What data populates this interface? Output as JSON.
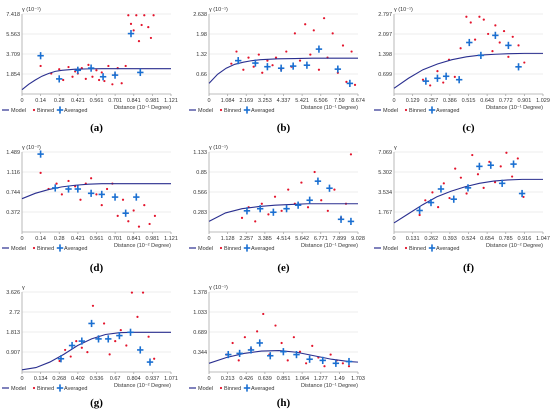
{
  "colors": {
    "model": "#2a2f8f",
    "binned": "#e3142c",
    "averaged": "#1a6fd1",
    "axis": "#a9a9a9"
  },
  "legend": {
    "model": "Model",
    "binned": "Binned",
    "averaged": "Averaged"
  },
  "chart_data": [
    {
      "type": "scatter",
      "panel_label": "(a)",
      "ylabel": "γ (10⁻¹)",
      "xlabel": "Distance (10⁻¹ Degree)",
      "xticks": [
        "0",
        "0.14",
        "0.28",
        "0.421",
        "0.561",
        "0.701",
        "0.841",
        "0.981",
        "1.121"
      ],
      "yticks": [
        "1.854",
        "3.709",
        "5.563",
        "7.418"
      ],
      "xlim": [
        0,
        1.121
      ],
      "ylim": [
        0,
        7.418
      ],
      "model": {
        "x": [
          0,
          0.05,
          0.1,
          0.15,
          0.2,
          0.25,
          0.3,
          0.4,
          0.5,
          0.6,
          0.7,
          0.8,
          0.9,
          1.0,
          1.121
        ],
        "y": [
          0.4,
          0.9,
          1.3,
          1.65,
          1.9,
          2.1,
          2.2,
          2.3,
          2.33,
          2.35,
          2.35,
          2.35,
          2.35,
          2.35,
          2.35
        ]
      },
      "binned": {
        "x": [
          0.14,
          0.22,
          0.28,
          0.31,
          0.35,
          0.38,
          0.4,
          0.42,
          0.45,
          0.48,
          0.5,
          0.53,
          0.56,
          0.58,
          0.6,
          0.62,
          0.65,
          0.68,
          0.7,
          0.72,
          0.75,
          0.78,
          0.8,
          0.82,
          0.84,
          0.86,
          0.88,
          0.9,
          0.92,
          0.95,
          0.97,
          0.99
        ],
        "y": [
          2.6,
          1.9,
          2.3,
          1.3,
          2.5,
          1.6,
          2.1,
          1.9,
          2.4,
          1.4,
          2.7,
          1.6,
          2.2,
          1.3,
          2.0,
          1.2,
          2.6,
          0.9,
          1.8,
          2.4,
          1.0,
          2.6,
          7.3,
          6.5,
          5.9,
          7.3,
          4.9,
          6.4,
          7.3,
          6.2,
          5.2,
          7.3
        ]
      },
      "averaged": {
        "x": [
          0.14,
          0.28,
          0.42,
          0.52,
          0.61,
          0.7,
          0.82,
          0.89
        ],
        "y": [
          3.55,
          1.4,
          2.2,
          2.4,
          1.6,
          1.75,
          5.6,
          2.0
        ]
      }
    },
    {
      "type": "scatter",
      "panel_label": "(b)",
      "ylabel": "γ (10⁻¹)",
      "xlabel": "Distance (10⁻¹ Degree)",
      "xticks": [
        "0",
        "1.084",
        "2.169",
        "3.253",
        "4.337",
        "5.421",
        "6.506",
        "7.59",
        "8.674"
      ],
      "yticks": [
        "0.66",
        "1.32",
        "1.98",
        "2.638"
      ],
      "xlim": [
        0,
        8.674
      ],
      "ylim": [
        0,
        2.638
      ],
      "model": {
        "x": [
          0,
          0.5,
          1.0,
          1.5,
          2.0,
          2.5,
          3.0,
          4.0,
          5.0,
          6.0,
          7.0,
          8.0,
          8.674
        ],
        "y": [
          0.35,
          0.65,
          0.85,
          0.98,
          1.05,
          1.1,
          1.13,
          1.16,
          1.17,
          1.18,
          1.18,
          1.18,
          1.18
        ]
      },
      "binned": {
        "x": [
          1.3,
          1.6,
          2.0,
          2.3,
          2.6,
          2.9,
          3.1,
          3.4,
          3.7,
          3.9,
          4.2,
          4.5,
          4.8,
          5.0,
          5.3,
          5.6,
          5.9,
          6.1,
          6.4,
          6.7,
          6.9,
          7.2,
          7.5,
          7.8,
          8.0,
          8.3,
          8.5
        ],
        "y": [
          1.0,
          1.4,
          0.8,
          1.2,
          0.9,
          1.3,
          0.7,
          1.1,
          0.95,
          1.2,
          0.8,
          1.4,
          0.9,
          2.0,
          1.1,
          2.3,
          1.3,
          2.1,
          0.8,
          2.5,
          1.2,
          2.0,
          0.7,
          1.6,
          0.4,
          1.4,
          0.3
        ]
      },
      "averaged": {
        "x": [
          1.7,
          2.7,
          3.4,
          4.2,
          4.9,
          5.7,
          6.4,
          7.5,
          8.2
        ],
        "y": [
          1.1,
          1.02,
          0.9,
          0.85,
          0.92,
          0.95,
          1.48,
          0.82,
          0.35
        ]
      }
    },
    {
      "type": "scatter",
      "panel_label": "(c)",
      "ylabel": "γ (10⁻¹)",
      "xlabel": "Distance (10⁻¹ Degree)",
      "xticks": [
        "0",
        "0.129",
        "0.257",
        "0.386",
        "0.515",
        "0.643",
        "0.772",
        "0.901",
        "1.029"
      ],
      "yticks": [
        "0.699",
        "1.398",
        "2.097",
        "2.797"
      ],
      "xlim": [
        0,
        1.029
      ],
      "ylim": [
        0,
        2.797
      ],
      "model": {
        "x": [
          0,
          0.1,
          0.2,
          0.3,
          0.4,
          0.5,
          0.6,
          0.7,
          0.8,
          0.9,
          1.029
        ],
        "y": [
          0.2,
          0.55,
          0.85,
          1.05,
          1.2,
          1.3,
          1.36,
          1.39,
          1.41,
          1.42,
          1.42
        ]
      },
      "binned": {
        "x": [
          0.2,
          0.25,
          0.3,
          0.34,
          0.38,
          0.42,
          0.46,
          0.5,
          0.53,
          0.56,
          0.59,
          0.62,
          0.65,
          0.68,
          0.7,
          0.73,
          0.76,
          0.79,
          0.82,
          0.86,
          0.9
        ],
        "y": [
          0.5,
          0.3,
          0.8,
          0.4,
          1.2,
          0.6,
          1.6,
          2.7,
          2.5,
          1.9,
          2.7,
          2.6,
          2.1,
          1.5,
          2.4,
          1.8,
          2.2,
          1.3,
          2.0,
          1.7,
          1.1
        ]
      },
      "averaged": {
        "x": [
          0.22,
          0.3,
          0.36,
          0.45,
          0.52,
          0.6,
          0.7,
          0.79,
          0.86
        ],
        "y": [
          0.45,
          0.55,
          0.62,
          0.5,
          1.8,
          1.35,
          2.05,
          1.7,
          0.95
        ]
      }
    },
    {
      "type": "scatter",
      "panel_label": "(d)",
      "ylabel": "γ (10⁻²)",
      "xlabel": "Distance (10⁻² Degree)",
      "xticks": [
        "0",
        "0.14",
        "0.28",
        "0.421",
        "0.561",
        "0.701",
        "0.841",
        "0.981",
        "1.121"
      ],
      "yticks": [
        "0.372",
        "0.744",
        "1.116",
        "1.489"
      ],
      "xlim": [
        0,
        1.121
      ],
      "ylim": [
        0,
        1.489
      ],
      "model": {
        "x": [
          0,
          0.1,
          0.2,
          0.3,
          0.4,
          0.5,
          0.6,
          0.7,
          0.8,
          0.9,
          1.0,
          1.121
        ],
        "y": [
          0.62,
          0.72,
          0.79,
          0.84,
          0.87,
          0.89,
          0.9,
          0.9,
          0.9,
          0.9,
          0.9,
          0.9
        ]
      },
      "binned": {
        "x": [
          0.14,
          0.2,
          0.26,
          0.3,
          0.35,
          0.4,
          0.44,
          0.48,
          0.52,
          0.56,
          0.6,
          0.64,
          0.68,
          0.72,
          0.76,
          0.8,
          0.84,
          0.88,
          0.92,
          0.96,
          1.0
        ],
        "y": [
          1.1,
          0.8,
          0.9,
          0.7,
          0.95,
          0.85,
          0.6,
          0.9,
          1.0,
          0.7,
          0.5,
          0.8,
          0.9,
          0.3,
          0.6,
          0.2,
          0.4,
          0.1,
          0.5,
          0.15,
          0.3
        ]
      },
      "averaged": {
        "x": [
          0.14,
          0.25,
          0.35,
          0.42,
          0.52,
          0.6,
          0.7,
          0.78,
          0.86
        ],
        "y": [
          1.45,
          0.82,
          0.8,
          0.8,
          0.72,
          0.7,
          0.65,
          0.35,
          0.65
        ]
      }
    },
    {
      "type": "scatter",
      "panel_label": "(e)",
      "ylabel": "γ (10⁻¹)",
      "xlabel": "Distance (10⁻¹ Degree)",
      "xticks": [
        "0",
        "1.128",
        "2.257",
        "3.385",
        "4.514",
        "5.642",
        "6.771",
        "7.899",
        "9.028"
      ],
      "yticks": [
        "0.283",
        "0.566",
        "0.85",
        "1.133"
      ],
      "xlim": [
        0,
        9.028
      ],
      "ylim": [
        0,
        1.133
      ],
      "model": {
        "x": [
          0,
          1,
          2,
          3,
          4,
          5,
          6,
          7,
          8,
          9.028
        ],
        "y": [
          0.15,
          0.27,
          0.33,
          0.36,
          0.38,
          0.39,
          0.4,
          0.4,
          0.4,
          0.4
        ]
      },
      "binned": {
        "x": [
          2.0,
          2.4,
          2.8,
          3.2,
          3.6,
          4.0,
          4.4,
          4.8,
          5.2,
          5.6,
          6.0,
          6.4,
          6.8,
          7.2,
          7.6,
          8.0,
          8.3,
          8.6
        ],
        "y": [
          0.2,
          0.35,
          0.15,
          0.4,
          0.25,
          0.5,
          0.3,
          0.6,
          0.4,
          0.7,
          0.35,
          0.85,
          0.45,
          0.3,
          0.6,
          0.2,
          0.4,
          1.1
        ]
      },
      "averaged": {
        "x": [
          2.3,
          3.1,
          3.9,
          4.7,
          5.4,
          6.1,
          6.6,
          7.3,
          8.0,
          8.6
        ],
        "y": [
          0.3,
          0.33,
          0.28,
          0.33,
          0.38,
          0.45,
          0.72,
          0.62,
          0.18,
          0.15
        ]
      }
    },
    {
      "type": "scatter",
      "panel_label": "(f)",
      "ylabel": "γ",
      "xlabel": "Distance (10⁻² Degree)",
      "xticks": [
        "0",
        "0.131",
        "0.262",
        "0.393",
        "0.524",
        "0.654",
        "0.785",
        "0.916",
        "1.047"
      ],
      "yticks": [
        "1.767",
        "3.534",
        "5.302",
        "7.069"
      ],
      "xlim": [
        0,
        1.047
      ],
      "ylim": [
        0,
        7.069
      ],
      "model": {
        "x": [
          0,
          0.1,
          0.2,
          0.3,
          0.4,
          0.5,
          0.6,
          0.7,
          0.8,
          0.9,
          1.047
        ],
        "y": [
          0.8,
          1.6,
          2.4,
          3.1,
          3.6,
          4.0,
          4.3,
          4.5,
          4.6,
          4.65,
          4.65
        ]
      },
      "binned": {
        "x": [
          0.18,
          0.22,
          0.27,
          0.31,
          0.35,
          0.39,
          0.43,
          0.47,
          0.51,
          0.55,
          0.59,
          0.63,
          0.67,
          0.71,
          0.75,
          0.79,
          0.83,
          0.87,
          0.91
        ],
        "y": [
          1.5,
          2.8,
          3.5,
          2.2,
          4.3,
          3.0,
          5.6,
          4.8,
          3.4,
          6.8,
          5.1,
          3.9,
          6.2,
          4.4,
          5.8,
          7.0,
          4.9,
          6.5,
          3.1
        ]
      },
      "averaged": {
        "x": [
          0.18,
          0.26,
          0.33,
          0.42,
          0.52,
          0.6,
          0.68,
          0.76,
          0.84,
          0.9
        ],
        "y": [
          1.9,
          2.6,
          3.8,
          2.9,
          3.9,
          5.8,
          5.9,
          4.3,
          6.0,
          3.4
        ]
      }
    },
    {
      "type": "scatter",
      "panel_label": "(g)",
      "ylabel": "γ",
      "xlabel": "Distance (10⁻² Degree)",
      "xticks": [
        "0",
        "0.134",
        "0.268",
        "0.402",
        "0.536",
        "0.67",
        "0.804",
        "0.937",
        "1.071"
      ],
      "yticks": [
        "0.907",
        "1.813",
        "2.72",
        "3.626"
      ],
      "xlim": [
        0,
        1.071
      ],
      "ylim": [
        0,
        3.626
      ],
      "model": {
        "x": [
          0,
          0.1,
          0.2,
          0.3,
          0.4,
          0.5,
          0.6,
          0.7,
          0.8,
          0.9,
          1.071
        ],
        "y": [
          0.1,
          0.2,
          0.45,
          0.8,
          1.2,
          1.5,
          1.7,
          1.78,
          1.8,
          1.8,
          1.8
        ]
      },
      "binned": {
        "x": [
          0.27,
          0.31,
          0.35,
          0.39,
          0.43,
          0.47,
          0.51,
          0.55,
          0.59,
          0.63,
          0.67,
          0.71,
          0.75,
          0.79,
          0.83,
          0.87,
          0.91,
          0.95
        ],
        "y": [
          0.5,
          1.0,
          0.7,
          1.4,
          1.1,
          0.9,
          3.0,
          1.6,
          2.2,
          0.8,
          1.4,
          1.9,
          1.2,
          3.6,
          2.5,
          3.6,
          1.6,
          0.6
        ]
      },
      "averaged": {
        "x": [
          0.28,
          0.36,
          0.43,
          0.5,
          0.55,
          0.62,
          0.7,
          0.78,
          0.85,
          0.92
        ],
        "y": [
          0.6,
          1.2,
          1.4,
          2.2,
          1.5,
          1.5,
          1.65,
          1.8,
          1.0,
          0.45
        ]
      }
    },
    {
      "type": "scatter",
      "panel_label": "(h)",
      "ylabel": "γ (10⁻¹)",
      "xlabel": "Distance (10⁻¹ Degree)",
      "xticks": [
        "0",
        "0.213",
        "0.426",
        "0.639",
        "0.851",
        "1.064",
        "1.277",
        "1.49",
        "1.703"
      ],
      "yticks": [
        "0.344",
        "0.689",
        "1.033",
        "1.378"
      ],
      "xlim": [
        0,
        1.703
      ],
      "ylim": [
        0,
        1.378
      ],
      "model": {
        "x": [
          0,
          0.2,
          0.4,
          0.6,
          0.8,
          1.0,
          1.2,
          1.4,
          1.6,
          1.703
        ],
        "y": [
          0.15,
          0.25,
          0.32,
          0.36,
          0.37,
          0.34,
          0.28,
          0.22,
          0.18,
          0.17
        ]
      },
      "binned": {
        "x": [
          0.2,
          0.27,
          0.34,
          0.41,
          0.48,
          0.55,
          0.62,
          0.69,
          0.76,
          0.83,
          0.9,
          0.97,
          1.04,
          1.11,
          1.18,
          1.25,
          1.32,
          1.39,
          1.46,
          1.53,
          1.6
        ],
        "y": [
          0.3,
          0.5,
          0.2,
          0.6,
          0.4,
          0.7,
          1.0,
          0.3,
          0.8,
          0.5,
          0.2,
          0.6,
          0.35,
          0.15,
          0.45,
          0.25,
          0.1,
          0.3,
          0.2,
          0.15,
          0.1
        ]
      },
      "averaged": {
        "x": [
          0.22,
          0.35,
          0.48,
          0.58,
          0.7,
          0.85,
          1.0,
          1.15,
          1.3,
          1.45,
          1.6
        ],
        "y": [
          0.3,
          0.32,
          0.38,
          0.5,
          0.28,
          0.35,
          0.3,
          0.22,
          0.2,
          0.15,
          0.18
        ]
      }
    }
  ]
}
